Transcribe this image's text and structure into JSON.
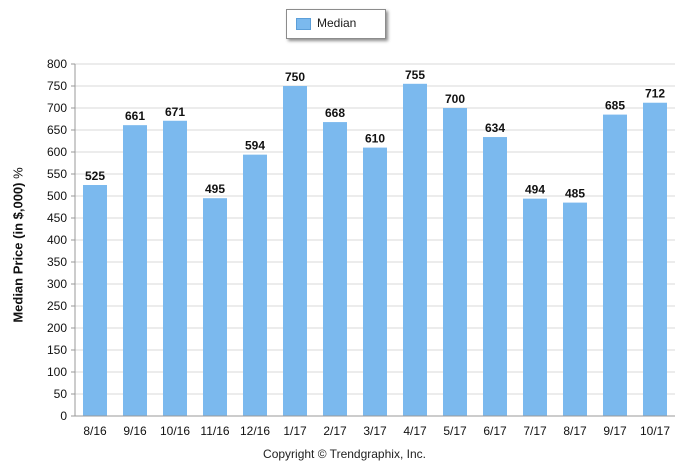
{
  "chart_data": {
    "type": "bar",
    "categories": [
      "8/16",
      "9/16",
      "10/16",
      "11/16",
      "12/16",
      "1/17",
      "2/17",
      "3/17",
      "4/17",
      "5/17",
      "6/17",
      "7/17",
      "8/17",
      "9/17",
      "10/17"
    ],
    "series": [
      {
        "name": "Median",
        "values": [
          525,
          661,
          671,
          495,
          594,
          750,
          668,
          610,
          755,
          700,
          634,
          494,
          485,
          685,
          712
        ]
      }
    ],
    "ylabel": "Median Price (in $,000)",
    "ylabel_unit": "%",
    "xlabel": "",
    "ylim": [
      0,
      800
    ],
    "yticks": [
      0,
      50,
      100,
      150,
      200,
      250,
      300,
      350,
      400,
      450,
      500,
      550,
      600,
      650,
      700,
      750,
      800
    ],
    "grid": true,
    "legend_position": "top-center",
    "data_labels": true,
    "bar_color": "#7bb9ee"
  },
  "legend": {
    "label": "Median"
  },
  "footer": {
    "copyright": "Copyright © Trendgraphix, Inc."
  }
}
